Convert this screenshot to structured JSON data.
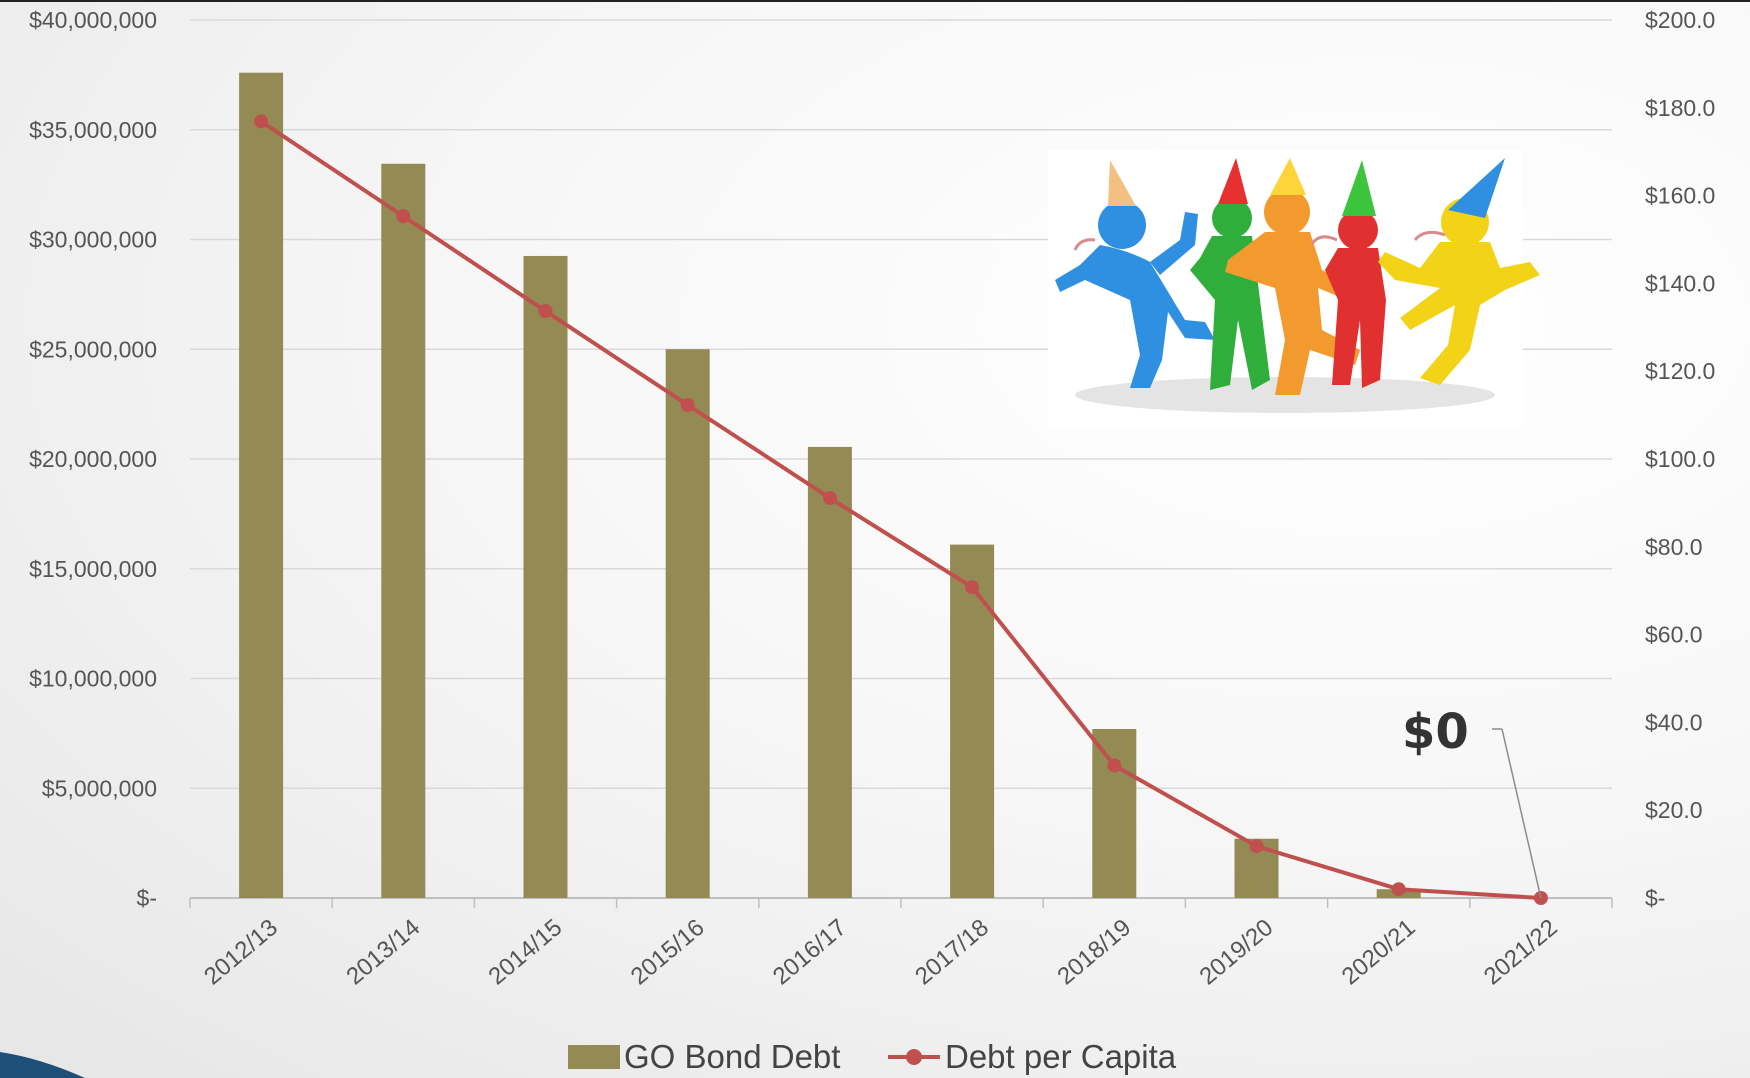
{
  "chart_data": {
    "type": "bar",
    "categories": [
      "2012/13",
      "2013/14",
      "2014/15",
      "2015/16",
      "2016/17",
      "2017/18",
      "2018/19",
      "2019/20",
      "2020/21",
      "2021/22"
    ],
    "series": [
      {
        "name": "GO Bond Debt",
        "type": "bar",
        "axis": "left",
        "color": "#948a54",
        "values": [
          37600000,
          33450000,
          29250000,
          25000000,
          20550000,
          16100000,
          7700000,
          2700000,
          400000,
          0
        ]
      },
      {
        "name": "Debt per Capita",
        "type": "line",
        "axis": "right",
        "color": "#c0504d",
        "values": [
          176.9,
          155.3,
          133.7,
          112.3,
          91.1,
          70.8,
          30.2,
          11.8,
          2.0,
          0
        ]
      }
    ],
    "y_left": {
      "ylim": [
        0,
        40000000
      ],
      "ticks": [
        0,
        5000000,
        10000000,
        15000000,
        20000000,
        25000000,
        30000000,
        35000000,
        40000000
      ],
      "tick_labels": [
        "$-",
        "$5,000,000",
        "$10,000,000",
        "$15,000,000",
        "$20,000,000",
        "$25,000,000",
        "$30,000,000",
        "$35,000,000",
        "$40,000,000"
      ]
    },
    "y_right": {
      "ylim": [
        0,
        200
      ],
      "ticks": [
        0,
        20,
        40,
        60,
        80,
        100,
        120,
        140,
        160,
        180,
        200
      ],
      "tick_labels": [
        "$-",
        "$20.0",
        "$40.0",
        "$60.0",
        "$80.0",
        "$100.0",
        "$120.0",
        "$140.0",
        "$160.0",
        "$180.0",
        "$200.0"
      ]
    },
    "annotations": [
      {
        "text": "$0",
        "target_category": "2021/22",
        "target_series": "Debt per Capita"
      }
    ],
    "legend": {
      "position": "bottom",
      "entries": [
        "GO Bond Debt",
        "Debt per Capita"
      ]
    },
    "grid": true
  },
  "decoration": {
    "image": "party-people-clipart-icon"
  }
}
